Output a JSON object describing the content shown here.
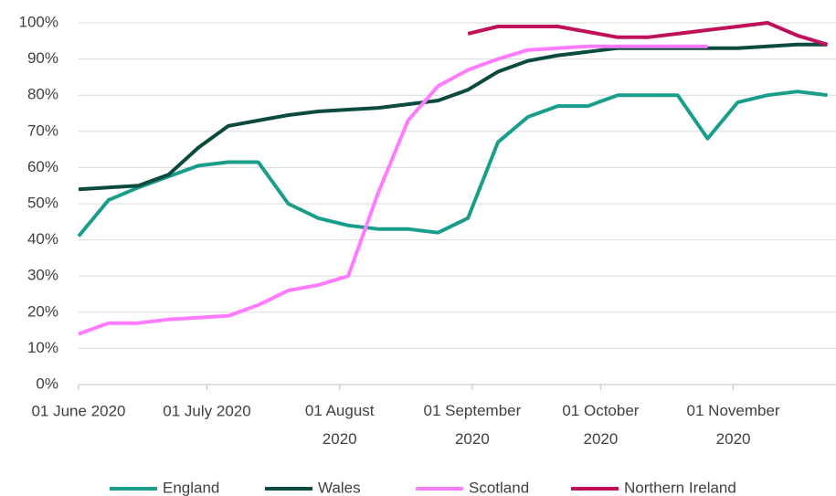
{
  "chart_data": {
    "type": "line",
    "x": [
      "2020-06-01",
      "2020-06-08",
      "2020-06-15",
      "2020-06-22",
      "2020-06-29",
      "2020-07-06",
      "2020-07-13",
      "2020-07-20",
      "2020-07-27",
      "2020-08-03",
      "2020-08-10",
      "2020-08-17",
      "2020-08-24",
      "2020-08-31",
      "2020-09-07",
      "2020-09-14",
      "2020-09-21",
      "2020-09-28",
      "2020-10-05",
      "2020-10-12",
      "2020-10-19",
      "2020-10-26",
      "2020-11-02",
      "2020-11-09",
      "2020-11-16",
      "2020-11-23"
    ],
    "series": [
      {
        "name": "England",
        "color": "#1a9e8c",
        "values": [
          41,
          51,
          54.5,
          57.5,
          60.5,
          61.5,
          61.5,
          50,
          46,
          44,
          43,
          43,
          42,
          46,
          67,
          74,
          77,
          77,
          80,
          80,
          80,
          68,
          78,
          80,
          81,
          80
        ]
      },
      {
        "name": "Wales",
        "color": "#0b4b3e",
        "values": [
          54,
          54.5,
          55,
          58,
          65.5,
          71.5,
          73,
          74.5,
          75.5,
          76,
          76.5,
          77.5,
          78.5,
          81.5,
          86.5,
          89.5,
          91,
          92,
          93,
          93,
          93,
          93,
          93,
          93.5,
          94,
          94
        ]
      },
      {
        "name": "Scotland",
        "color": "#ff7bff",
        "values": [
          14,
          17,
          17,
          18,
          18.5,
          19,
          22,
          26,
          27.5,
          30,
          53,
          73,
          82.5,
          87,
          90,
          92.5,
          93,
          93.5,
          93.5,
          93.5,
          93.5,
          93.5,
          null,
          null,
          null,
          null
        ]
      },
      {
        "name": "Northern Ireland",
        "color": "#c0105a",
        "values": [
          null,
          null,
          null,
          null,
          null,
          null,
          null,
          null,
          null,
          null,
          null,
          null,
          null,
          97,
          99,
          99,
          99,
          97.5,
          96,
          96,
          97,
          98,
          99,
          100,
          96.5,
          94
        ]
      }
    ],
    "xlim": [
      "2020-06-01",
      "2020-11-25"
    ],
    "xticks": [
      {
        "value": "2020-06-01",
        "label": "01 June 2020"
      },
      {
        "value": "2020-07-01",
        "label": "01 July 2020"
      },
      {
        "value": "2020-08-01",
        "label": "01 August 2020"
      },
      {
        "value": "2020-09-01",
        "label": "01 September 2020"
      },
      {
        "value": "2020-10-01",
        "label": "01 October 2020"
      },
      {
        "value": "2020-11-01",
        "label": "01 November 2020"
      }
    ],
    "ylim": [
      0,
      100
    ],
    "yticks": [
      {
        "value": 0,
        "label": "0%"
      },
      {
        "value": 10,
        "label": "10%"
      },
      {
        "value": 20,
        "label": "20%"
      },
      {
        "value": 30,
        "label": "30%"
      },
      {
        "value": 40,
        "label": "40%"
      },
      {
        "value": 50,
        "label": "50%"
      },
      {
        "value": 60,
        "label": "60%"
      },
      {
        "value": 70,
        "label": "70%"
      },
      {
        "value": 80,
        "label": "80%"
      },
      {
        "value": 90,
        "label": "90%"
      },
      {
        "value": 100,
        "label": "100%"
      }
    ],
    "grid": true,
    "legend": "bottom"
  }
}
